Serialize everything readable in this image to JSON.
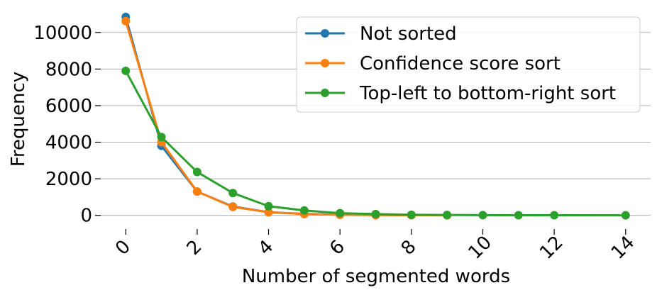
{
  "chart_data": {
    "type": "line",
    "title": "",
    "xlabel": "Number of segmented words",
    "ylabel": "Frequency",
    "xlim": [
      -0.7,
      14.7
    ],
    "ylim": [
      -750,
      11000
    ],
    "xticks": [
      0,
      2,
      4,
      6,
      8,
      10,
      12,
      14
    ],
    "yticks": [
      0,
      2000,
      4000,
      6000,
      8000,
      10000
    ],
    "xtick_labels": [
      "0",
      "2",
      "4",
      "6",
      "8",
      "10",
      "12",
      "14"
    ],
    "ytick_labels": [
      "0",
      "2000",
      "4000",
      "6000",
      "8000",
      "10000"
    ],
    "grid": "horizontal",
    "legend_position": "top-right",
    "series": [
      {
        "name": "Not sorted",
        "color": "#1f77b4",
        "x": [
          0,
          1,
          2,
          3,
          4,
          5,
          6,
          7,
          8,
          9
        ],
        "y": [
          10850,
          3800,
          1300,
          480,
          170,
          80,
          35,
          15,
          5,
          2
        ]
      },
      {
        "name": "Confidence score sort",
        "color": "#ff7f0e",
        "x": [
          0,
          1,
          2,
          3,
          4,
          5,
          6,
          7,
          8,
          9
        ],
        "y": [
          10620,
          4000,
          1300,
          460,
          170,
          70,
          30,
          12,
          5,
          2
        ]
      },
      {
        "name": "Top-left to bottom-right sort",
        "color": "#2ca02c",
        "x": [
          0,
          1,
          2,
          3,
          4,
          5,
          6,
          7,
          8,
          9,
          10,
          11,
          12,
          14
        ],
        "y": [
          7900,
          4280,
          2370,
          1220,
          500,
          270,
          120,
          70,
          30,
          20,
          12,
          8,
          5,
          2
        ]
      }
    ]
  }
}
